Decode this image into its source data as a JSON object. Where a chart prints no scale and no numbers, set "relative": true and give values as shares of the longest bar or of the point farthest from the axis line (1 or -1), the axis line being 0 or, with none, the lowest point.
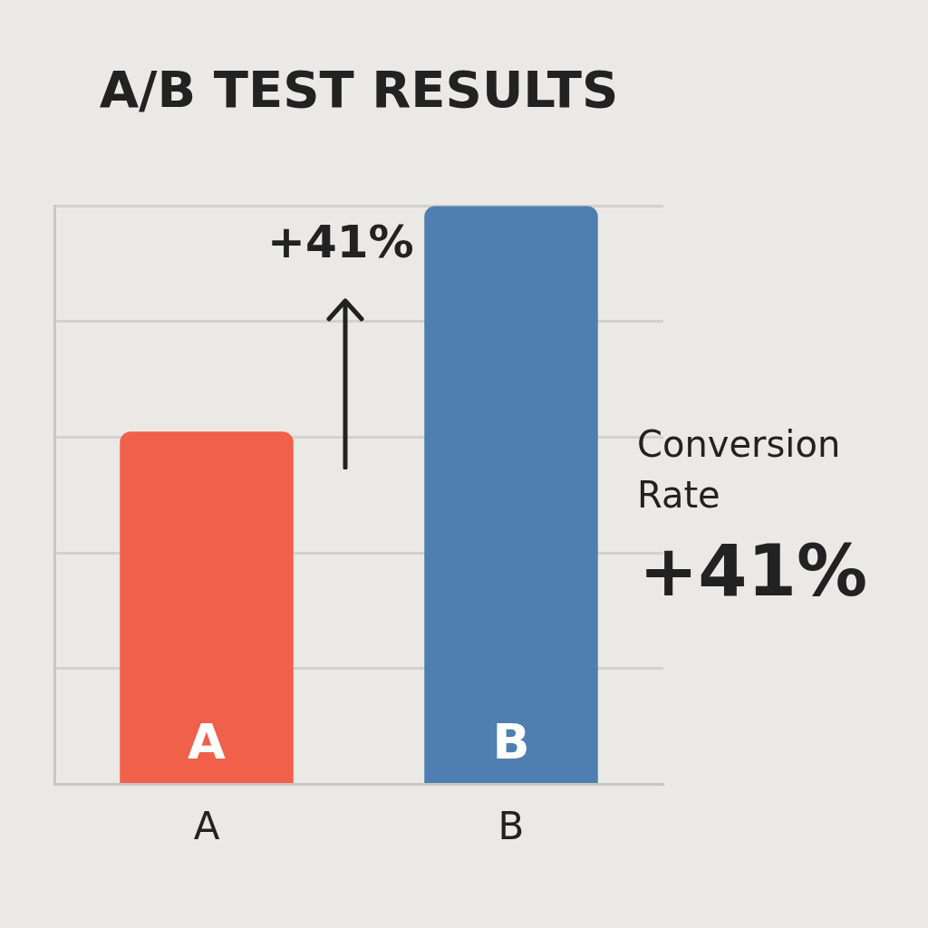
{
  "chart_data": {
    "type": "bar",
    "title": "A/B TEST RESULTS",
    "categories": [
      "A",
      "B"
    ],
    "values": [
      0.61,
      1
    ],
    "colors": [
      "#f0604a",
      "#4f7fb0"
    ],
    "relative": true,
    "grid": "y",
    "legend": false,
    "annotations": [
      "+41%",
      "Conversion Rate",
      "+41%"
    ]
  }
}
